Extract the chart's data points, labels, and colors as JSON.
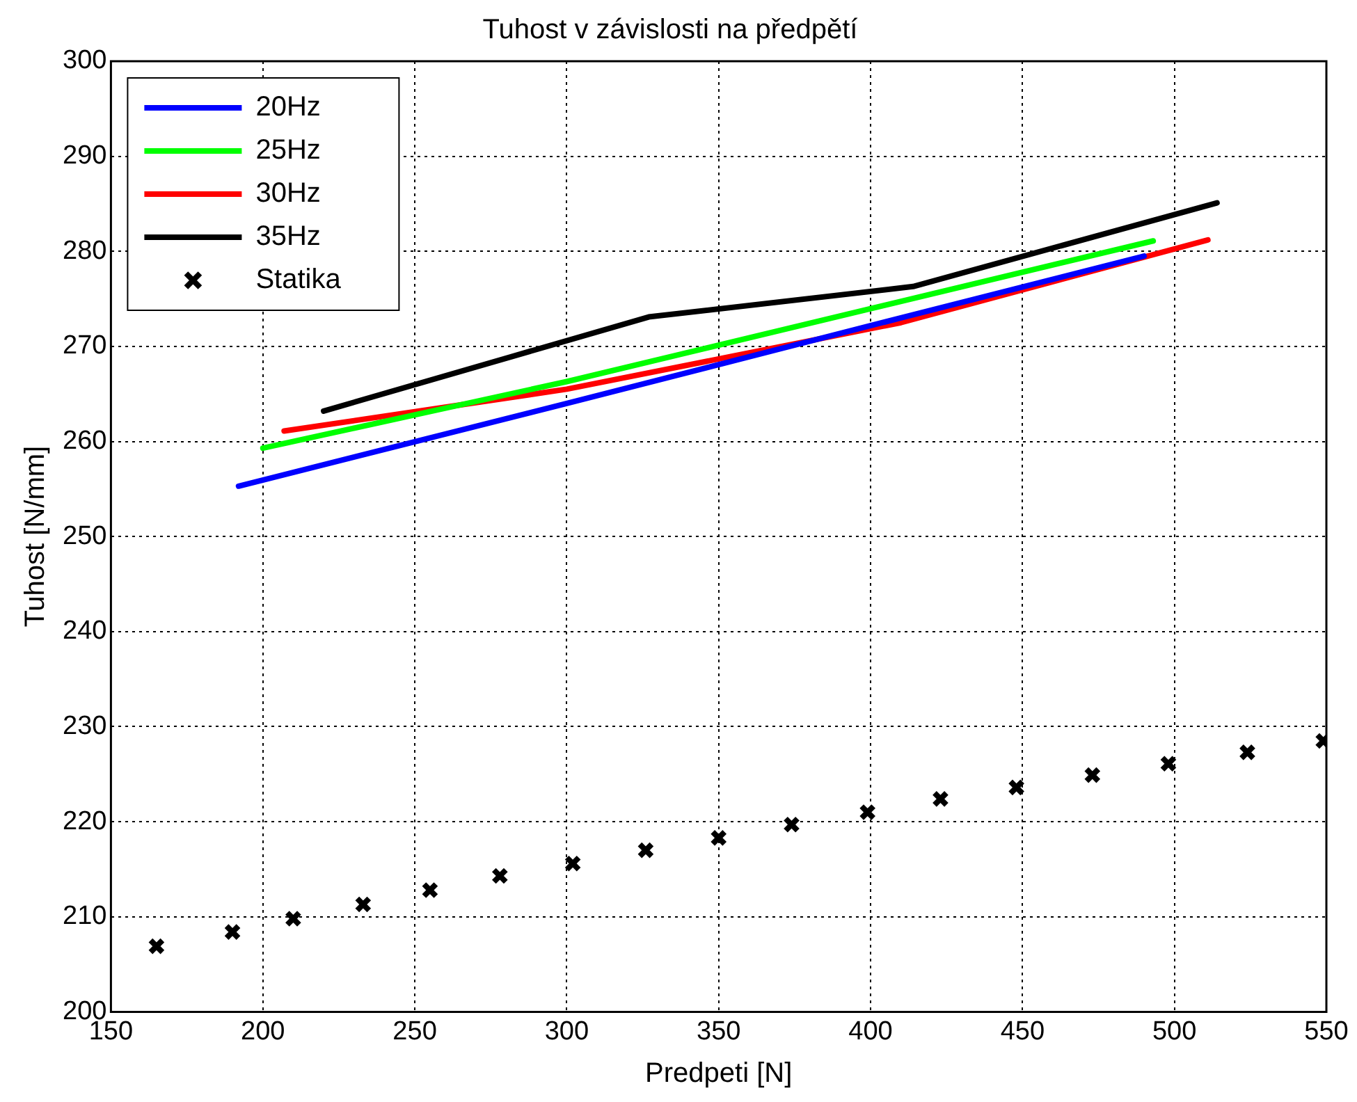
{
  "chart_data": {
    "type": "line",
    "title": "Tuhost v závislosti na předpětí",
    "xlabel": "Predpeti [N]",
    "ylabel": "Tuhost [N/mm]",
    "xlim": [
      150,
      550
    ],
    "xticks": [
      150,
      200,
      250,
      300,
      350,
      400,
      450,
      500,
      550
    ],
    "ylim": [
      200,
      300
    ],
    "yticks": [
      200,
      210,
      220,
      230,
      240,
      250,
      260,
      270,
      280,
      290,
      300
    ],
    "grid": true,
    "legend": "top left",
    "line_style": "solid",
    "series": [
      {
        "name": "20Hz",
        "color": "#0000ff",
        "x": [
          192,
          300,
          410,
          490
        ],
        "values": [
          255.3,
          264,
          273,
          279.5
        ]
      },
      {
        "name": "25Hz",
        "color": "#00ff00",
        "x": [
          200,
          300,
          493
        ],
        "values": [
          259.3,
          266.3,
          281.1
        ]
      },
      {
        "name": "30Hz",
        "color": "#ff0000",
        "x": [
          207,
          300,
          410,
          511
        ],
        "values": [
          261.1,
          265.5,
          272.5,
          281.2
        ]
      },
      {
        "name": "35Hz",
        "color": "#000000",
        "x": [
          220,
          327,
          414,
          514
        ],
        "values": [
          263.2,
          273.1,
          276.3,
          285.1
        ]
      },
      {
        "name": "Statika",
        "type": "scatter",
        "marker": "cross",
        "color": "#000000",
        "x": [
          165,
          190,
          210,
          233,
          255,
          278,
          302,
          326,
          350,
          374,
          399,
          423,
          448,
          473,
          498,
          524,
          549
        ],
        "values": [
          206.9,
          208.4,
          209.8,
          211.3,
          212.8,
          214.3,
          215.6,
          217.0,
          218.3,
          219.7,
          221.0,
          222.4,
          223.6,
          224.9,
          226.1,
          227.3,
          228.5
        ]
      }
    ]
  }
}
